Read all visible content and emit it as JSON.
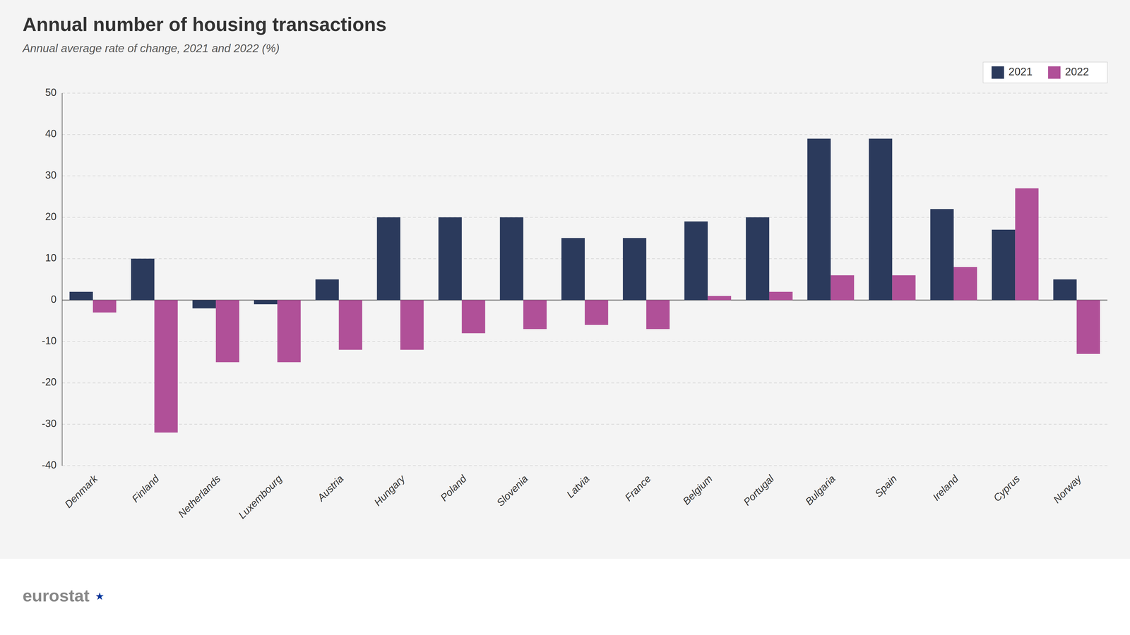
{
  "chart_data": {
    "type": "bar",
    "title": "Annual number of housing transactions",
    "subtitle": "Annual average rate of change, 2021 and 2022 (%)",
    "annotations": [
      "eurostat",
      "★"
    ],
    "categories": [
      "Denmark",
      "Finland",
      "Netherlands",
      "Luxembourg",
      "Austria",
      "Hungary",
      "Poland",
      "Slovenia",
      "Latvia",
      "France",
      "Belgium",
      "Portugal",
      "Bulgaria",
      "Spain",
      "Ireland",
      "Cyprus",
      "Norway"
    ],
    "series": [
      {
        "name": "2021",
        "color": "#2b3a5c",
        "values": [
          2,
          10,
          -2,
          -1,
          5,
          20,
          20,
          20,
          15,
          15,
          19,
          20,
          39,
          39,
          22,
          17,
          5
        ]
      },
      {
        "name": "2022",
        "color": "#b05098",
        "values": [
          -3,
          -32,
          -15,
          -15,
          -12,
          -12,
          -8,
          -7,
          -6,
          -7,
          1,
          2,
          6,
          6,
          8,
          27,
          -13
        ]
      }
    ],
    "ylim": [
      -40,
      50
    ],
    "yticks": [
      -40,
      -30,
      -20,
      -10,
      0,
      10,
      20,
      30,
      40,
      50
    ],
    "grid": true,
    "legend": "upper right"
  }
}
